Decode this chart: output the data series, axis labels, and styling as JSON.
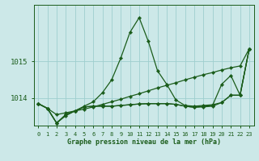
{
  "title": "Graphe pression niveau de la mer (hPa)",
  "background_color": "#cce8e8",
  "grid_color": "#9ecece",
  "line_color": "#1a5c1a",
  "x_labels": [
    "0",
    "1",
    "2",
    "3",
    "4",
    "5",
    "6",
    "7",
    "8",
    "9",
    "10",
    "11",
    "12",
    "13",
    "14",
    "15",
    "16",
    "17",
    "18",
    "19",
    "20",
    "21",
    "22",
    "23"
  ],
  "ylim": [
    1013.25,
    1016.55
  ],
  "yticks": [
    1014,
    1015
  ],
  "figsize": [
    3.2,
    2.0
  ],
  "dpi": 100,
  "series": [
    [
      1013.85,
      1013.72,
      1013.32,
      1013.52,
      1013.65,
      1013.78,
      1013.9,
      1014.15,
      1014.5,
      1015.1,
      1015.8,
      1016.2,
      1015.55,
      1014.75,
      1014.38,
      1013.95,
      1013.8,
      1013.78,
      1013.8,
      1013.82,
      1013.88,
      1014.08,
      1014.08,
      1015.35
    ],
    [
      1013.85,
      1013.72,
      1013.55,
      1013.6,
      1013.65,
      1013.7,
      1013.76,
      1013.83,
      1013.9,
      1013.97,
      1014.05,
      1014.12,
      1014.2,
      1014.28,
      1014.35,
      1014.42,
      1014.5,
      1014.57,
      1014.64,
      1014.7,
      1014.77,
      1014.83,
      1014.88,
      1015.35
    ],
    [
      1013.85,
      1013.72,
      1013.32,
      1013.55,
      1013.65,
      1013.76,
      1013.78,
      1013.78,
      1013.78,
      1013.8,
      1013.82,
      1013.84,
      1013.85,
      1013.85,
      1013.85,
      1013.83,
      1013.78,
      1013.75,
      1013.76,
      1013.78,
      1013.88,
      1014.08,
      1014.08,
      1015.35
    ],
    [
      1013.85,
      1013.72,
      1013.32,
      1013.55,
      1013.65,
      1013.76,
      1013.78,
      1013.78,
      1013.78,
      1013.8,
      1013.82,
      1013.84,
      1013.85,
      1013.85,
      1013.85,
      1013.83,
      1013.78,
      1013.75,
      1013.78,
      1013.8,
      1014.38,
      1014.62,
      1014.08,
      1015.35
    ]
  ]
}
